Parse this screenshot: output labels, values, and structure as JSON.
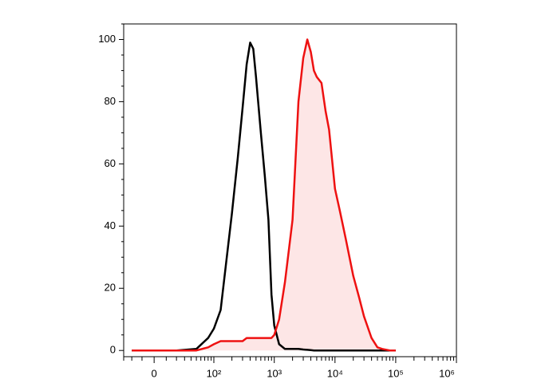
{
  "chart_data": {
    "type": "histogram-line",
    "x": [
      -20,
      0,
      20,
      50,
      80,
      100,
      130,
      160,
      200,
      250,
      300,
      350,
      400,
      450,
      500,
      600,
      700,
      800,
      900,
      1000,
      1200,
      1500,
      2000,
      2500,
      3000,
      3500,
      4000,
      4500,
      5000,
      6000,
      7000,
      8000,
      10000,
      12000,
      15000,
      20000,
      25000,
      30000,
      40000,
      50000,
      60000,
      80000,
      100000
    ],
    "series": [
      {
        "color": "#000000",
        "values": [
          0,
          0,
          0,
          0.5,
          4,
          7,
          13,
          28,
          44,
          62,
          78,
          92,
          99,
          97,
          88,
          70,
          56,
          42,
          18,
          8,
          2,
          0.5,
          0.5,
          0.5,
          0.3,
          0.2,
          0.1,
          0,
          0,
          0,
          0,
          0,
          0,
          0,
          0,
          0,
          0,
          0,
          0,
          0,
          0,
          0,
          0
        ]
      },
      {
        "color": "#ee1111",
        "fill": "#fde6e6",
        "values": [
          0,
          0,
          0,
          0,
          1,
          2,
          3,
          3,
          3,
          3,
          3,
          4,
          4,
          4,
          4,
          4,
          4,
          4,
          4,
          5,
          10,
          22,
          42,
          80,
          94,
          100,
          96,
          90,
          88,
          86,
          77,
          71,
          52,
          45,
          36,
          24,
          17,
          11,
          4,
          1,
          0.5,
          0,
          0
        ]
      }
    ],
    "xscale": "biexponential",
    "xlim": [
      -30,
      1000000
    ],
    "xticks": [
      0,
      {
        "value": 100,
        "label": "10²"
      },
      {
        "value": 1000,
        "label": "10³"
      },
      {
        "value": 10000,
        "label": "10⁴"
      },
      {
        "value": 100000,
        "label": "10⁵"
      },
      {
        "value": 1000000,
        "label": "10⁶"
      }
    ],
    "xminorticks": [
      -30,
      -20,
      -10,
      10,
      20,
      30,
      40,
      50,
      60,
      70,
      80,
      90,
      200,
      300,
      400,
      500,
      600,
      700,
      800,
      900,
      2000,
      3000,
      4000,
      5000,
      6000,
      7000,
      8000,
      9000,
      20000,
      30000,
      40000,
      50000,
      60000,
      70000,
      80000,
      90000,
      200000,
      300000,
      400000,
      500000,
      600000,
      700000,
      800000,
      900000
    ],
    "ylim": [
      -2,
      105
    ],
    "yticks": [
      0,
      20,
      40,
      60,
      80,
      100
    ],
    "yminorticks": [
      5,
      10,
      15,
      25,
      30,
      35,
      45,
      50,
      55,
      65,
      70,
      75,
      85,
      90,
      95,
      105
    ]
  }
}
